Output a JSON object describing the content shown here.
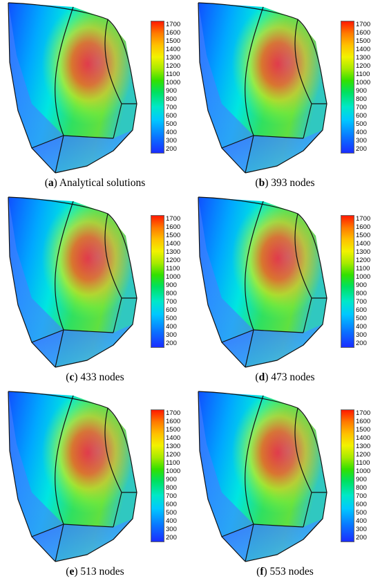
{
  "colorbar": {
    "labels": [
      "1700",
      "1600",
      "1500",
      "1400",
      "1300",
      "1200",
      "1100",
      "1000",
      "900",
      "800",
      "700",
      "600",
      "500",
      "400",
      "300",
      "200"
    ]
  },
  "panels": [
    {
      "letter": "a",
      "caption": " Analytical solutions"
    },
    {
      "letter": "b",
      "caption": " 393 nodes"
    },
    {
      "letter": "c",
      "caption": " 433 nodes"
    },
    {
      "letter": "d",
      "caption": " 473 nodes"
    },
    {
      "letter": "e",
      "caption": " 513 nodes"
    },
    {
      "letter": "f",
      "caption": " 553 nodes"
    }
  ]
}
